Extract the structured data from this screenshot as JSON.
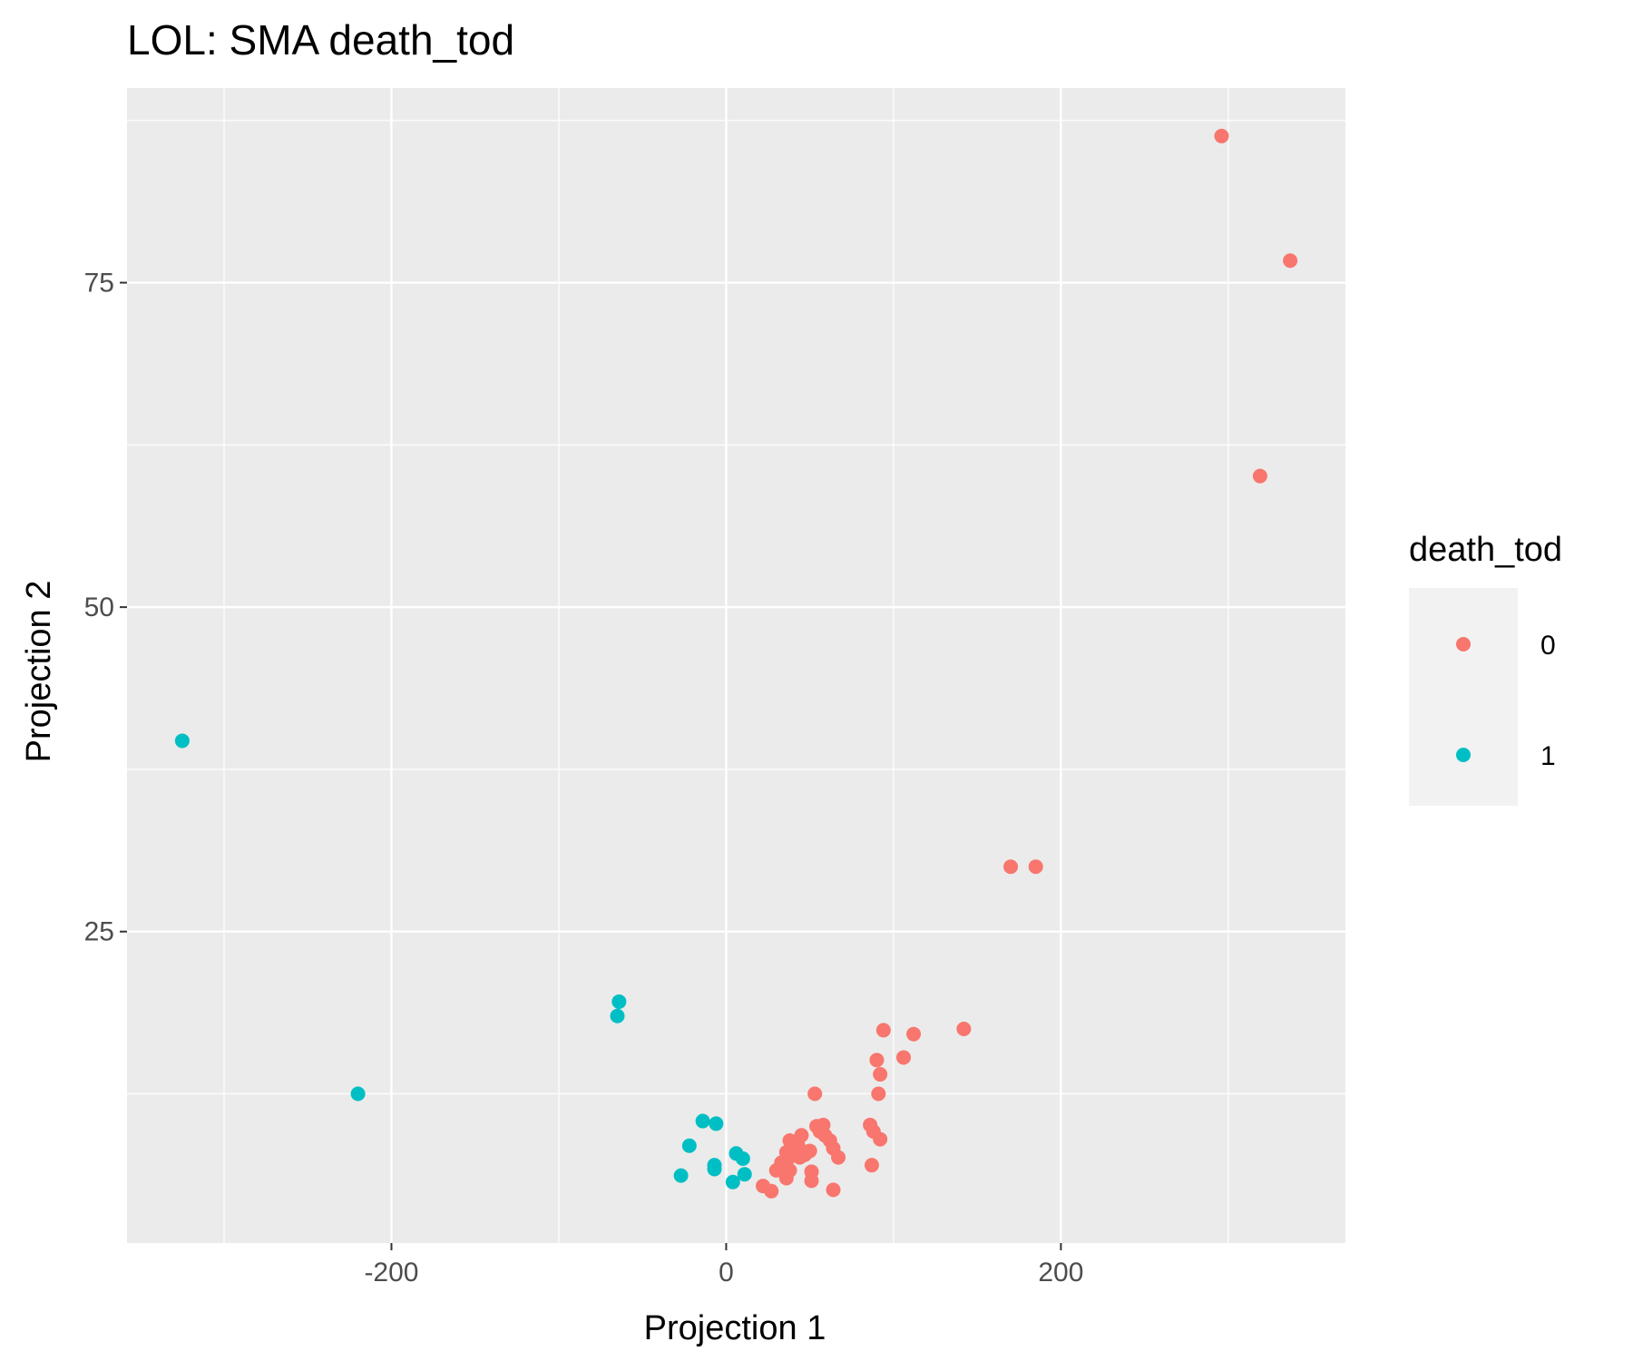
{
  "chart_data": {
    "type": "scatter",
    "title": "LOL: SMA death_tod",
    "xlabel": "Projection 1",
    "ylabel": "Projection 2",
    "xlim": [
      -358,
      370
    ],
    "ylim": [
      1,
      90
    ],
    "x_ticks": [
      -200,
      0,
      200
    ],
    "y_ticks": [
      25,
      50,
      75
    ],
    "x_tick_labels": [
      "-200",
      "0",
      "200"
    ],
    "y_tick_labels": [
      "25",
      "50",
      "75"
    ],
    "grid": true,
    "background": "#ebebeb",
    "legend": {
      "title": "death_tod",
      "position": "right",
      "entries": [
        {
          "label": "0",
          "color": "#f8766d"
        },
        {
          "label": "1",
          "color": "#00bfc4"
        }
      ]
    },
    "series": [
      {
        "name": "0",
        "color": "#f8766d",
        "points": [
          [
            296,
            86.3
          ],
          [
            337,
            76.7
          ],
          [
            319,
            60.1
          ],
          [
            170,
            30.0
          ],
          [
            185,
            30.0
          ],
          [
            142,
            17.5
          ],
          [
            112,
            17.1
          ],
          [
            94,
            17.4
          ],
          [
            106,
            15.3
          ],
          [
            92,
            14.0
          ],
          [
            90,
            15.1
          ],
          [
            91,
            12.5
          ],
          [
            53,
            12.5
          ],
          [
            58,
            10.1
          ],
          [
            54,
            10.0
          ],
          [
            59,
            9.3
          ],
          [
            56,
            9.6
          ],
          [
            62,
            8.9
          ],
          [
            64,
            8.3
          ],
          [
            67,
            7.6
          ],
          [
            86,
            10.1
          ],
          [
            88,
            9.6
          ],
          [
            92,
            9.0
          ],
          [
            87,
            7.0
          ],
          [
            45,
            9.3
          ],
          [
            40,
            8.7
          ],
          [
            38,
            8.9
          ],
          [
            43,
            8.5
          ],
          [
            36,
            8.0
          ],
          [
            41,
            7.9
          ],
          [
            47,
            7.8
          ],
          [
            50,
            8.1
          ],
          [
            44,
            7.6
          ],
          [
            37,
            7.5
          ],
          [
            33,
            7.2
          ],
          [
            30,
            6.6
          ],
          [
            38,
            6.6
          ],
          [
            36,
            6.0
          ],
          [
            51,
            6.5
          ],
          [
            51,
            5.8
          ],
          [
            22,
            5.4
          ],
          [
            27,
            5.0
          ],
          [
            64,
            5.1
          ]
        ]
      },
      {
        "name": "1",
        "color": "#00bfc4",
        "points": [
          [
            -325,
            39.7
          ],
          [
            -220,
            12.5
          ],
          [
            -64,
            19.6
          ],
          [
            -65,
            18.5
          ],
          [
            -14,
            10.4
          ],
          [
            -6,
            10.2
          ],
          [
            -22,
            8.5
          ],
          [
            6,
            7.9
          ],
          [
            10,
            7.5
          ],
          [
            -7,
            7.0
          ],
          [
            -7,
            6.7
          ],
          [
            11,
            6.3
          ],
          [
            -27,
            6.2
          ],
          [
            4,
            5.7
          ]
        ]
      }
    ]
  }
}
